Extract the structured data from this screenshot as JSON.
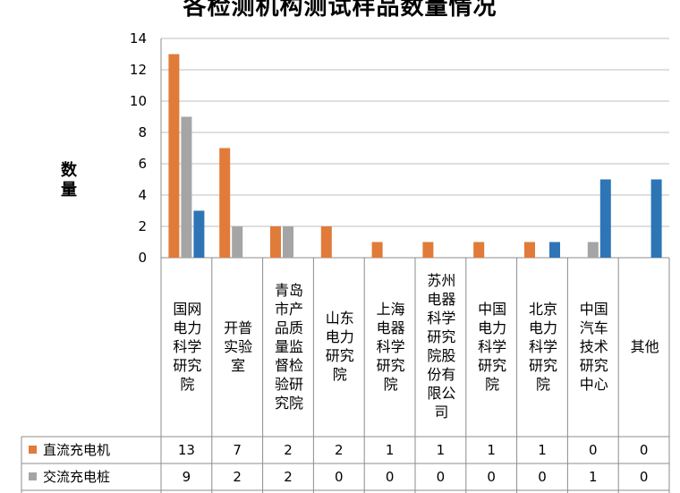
{
  "chart_data": {
    "type": "bar",
    "title": "各检测机构测试样品数量情况",
    "ylabel": "数量",
    "xlabel": "",
    "ylim": [
      0,
      14
    ],
    "yticks": [
      0,
      2,
      4,
      6,
      8,
      10,
      12,
      14
    ],
    "grid": true,
    "legend": "data-table-bottom",
    "categories": [
      "国网电力科学研究院",
      "开普实验室",
      "青岛市产品质量监督检验研究院",
      "山东电力研究院",
      "上海电器科学研究院",
      "苏州电器科学研究院股份有限公司",
      "中国电力科学研究院",
      "北京电力科学研究院",
      "中国汽车技术研究中心",
      "其他"
    ],
    "series": [
      {
        "name": "直流充电机",
        "color": "#E07B39",
        "values": [
          13,
          7,
          2,
          2,
          1,
          1,
          1,
          1,
          0,
          0
        ]
      },
      {
        "name": "交流充电桩",
        "color": "#A5A5A5",
        "values": [
          9,
          2,
          2,
          0,
          0,
          0,
          0,
          0,
          1,
          0
        ]
      },
      {
        "name": "",
        "color": "#2E75B6",
        "values": [
          3,
          0,
          0,
          0,
          0,
          0,
          0,
          1,
          5,
          5
        ]
      }
    ],
    "table_rows": [
      {
        "series_index": 0,
        "values": [
          "13",
          "7",
          "2",
          "2",
          "1",
          "1",
          "1",
          "1",
          "0",
          "0"
        ]
      },
      {
        "series_index": 1,
        "values": [
          "9",
          "2",
          "2",
          "0",
          "0",
          "0",
          "0",
          "0",
          "1",
          "0"
        ]
      }
    ]
  }
}
